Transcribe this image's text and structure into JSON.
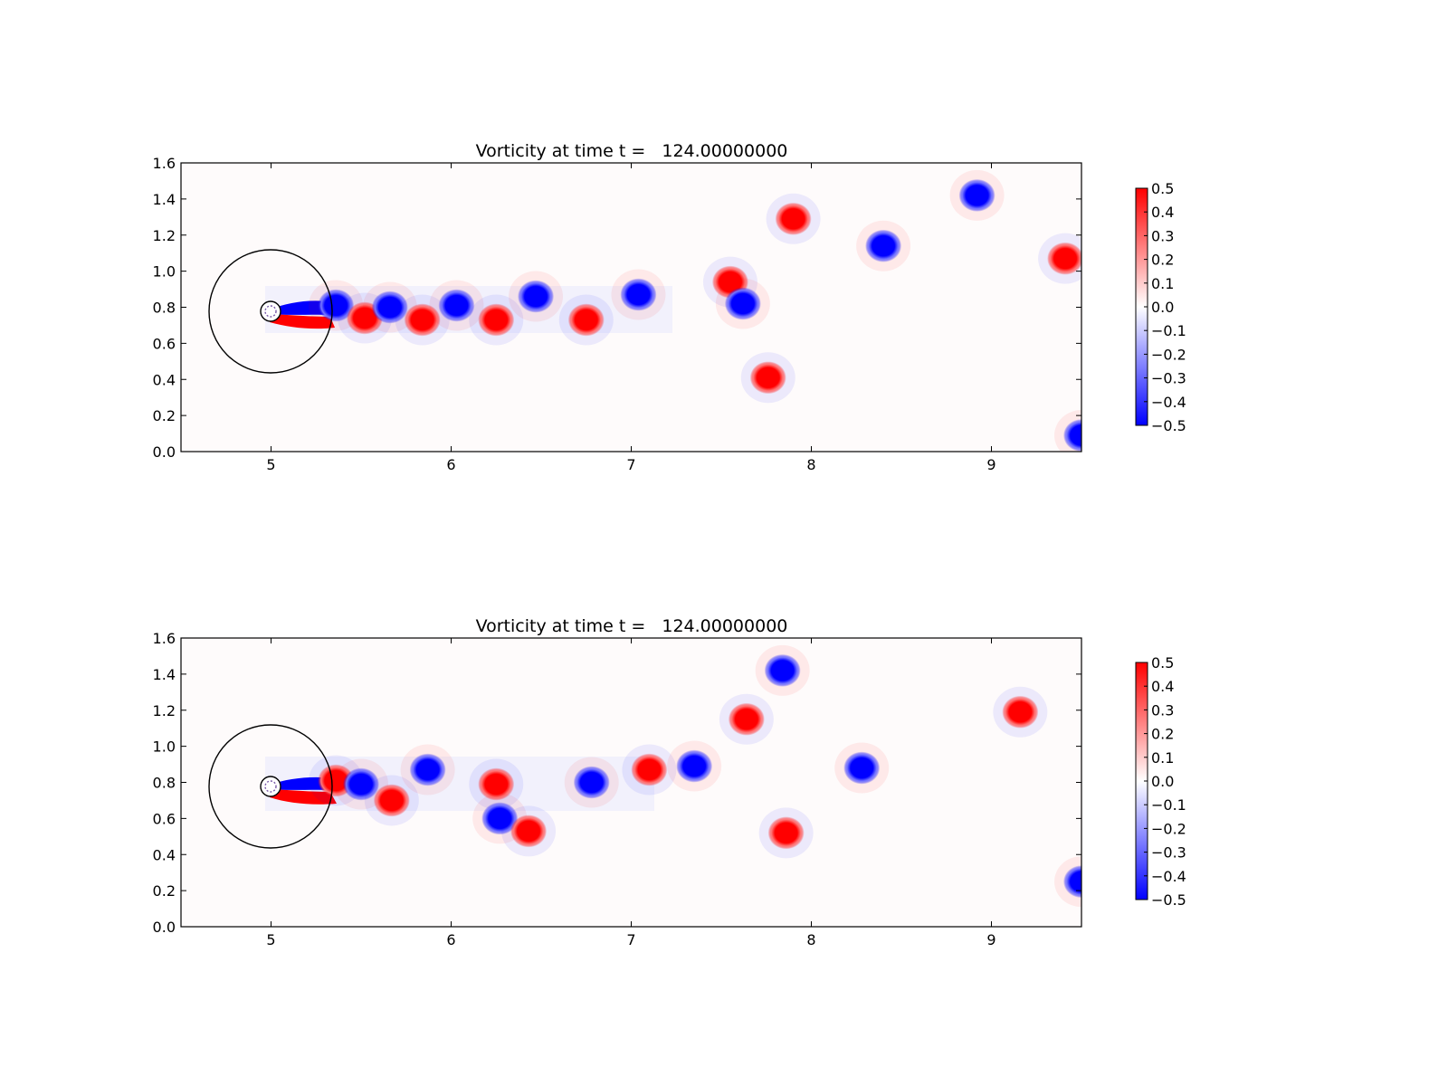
{
  "chart_data": [
    {
      "type": "heatmap",
      "title": "Vorticity at time t =   124.00000000",
      "xlabel": "",
      "ylabel": "",
      "xlim": [
        4.5,
        9.5
      ],
      "ylim": [
        0.0,
        1.6
      ],
      "x_ticks": [
        5,
        6,
        7,
        8,
        9
      ],
      "y_ticks": [
        0.0,
        0.2,
        0.4,
        0.6,
        0.8,
        1.0,
        1.2,
        1.4,
        1.6
      ],
      "grid": false,
      "colormap": {
        "name": "bwr",
        "low": "#0000ff",
        "mid": "#ffffff",
        "high": "#ff0000"
      },
      "colorbar": {
        "min": -0.5,
        "max": 0.5,
        "ticks": [
          0.5,
          0.4,
          0.3,
          0.2,
          0.1,
          0.0,
          -0.1,
          -0.2,
          -0.3,
          -0.4,
          -0.5
        ]
      },
      "circles": [
        {
          "cx": 5.0,
          "cy": 0.76,
          "r": 0.35
        },
        {
          "cx": 5.0,
          "cy": 0.76,
          "r": 0.055
        }
      ],
      "vortices": [
        {
          "x": 5.36,
          "y": 0.81,
          "w": -0.5
        },
        {
          "x": 5.52,
          "y": 0.74,
          "w": 0.5
        },
        {
          "x": 5.66,
          "y": 0.8,
          "w": -0.5
        },
        {
          "x": 5.84,
          "y": 0.73,
          "w": 0.5
        },
        {
          "x": 6.03,
          "y": 0.81,
          "w": -0.5
        },
        {
          "x": 6.25,
          "y": 0.73,
          "w": 0.5
        },
        {
          "x": 6.47,
          "y": 0.86,
          "w": -0.5
        },
        {
          "x": 6.75,
          "y": 0.73,
          "w": 0.5
        },
        {
          "x": 7.04,
          "y": 0.87,
          "w": -0.5
        },
        {
          "x": 7.55,
          "y": 0.94,
          "w": 0.5
        },
        {
          "x": 7.62,
          "y": 0.82,
          "w": -0.5
        },
        {
          "x": 7.76,
          "y": 0.41,
          "w": 0.5
        },
        {
          "x": 7.9,
          "y": 1.29,
          "w": 0.5
        },
        {
          "x": 8.4,
          "y": 1.14,
          "w": -0.5
        },
        {
          "x": 8.92,
          "y": 1.42,
          "w": -0.5
        },
        {
          "x": 9.41,
          "y": 1.07,
          "w": 0.5
        },
        {
          "x": 9.5,
          "y": 0.09,
          "w": -0.4
        }
      ]
    },
    {
      "type": "heatmap",
      "title": "Vorticity at time t =   124.00000000",
      "xlabel": "",
      "ylabel": "",
      "xlim": [
        4.5,
        9.5
      ],
      "ylim": [
        0.0,
        1.6
      ],
      "x_ticks": [
        5,
        6,
        7,
        8,
        9
      ],
      "y_ticks": [
        0.0,
        0.2,
        0.4,
        0.6,
        0.8,
        1.0,
        1.2,
        1.4,
        1.6
      ],
      "grid": false,
      "colormap": {
        "name": "bwr",
        "low": "#0000ff",
        "mid": "#ffffff",
        "high": "#ff0000"
      },
      "colorbar": {
        "min": -0.5,
        "max": 0.5,
        "ticks": [
          0.5,
          0.4,
          0.3,
          0.2,
          0.1,
          0.0,
          -0.1,
          -0.2,
          -0.3,
          -0.4,
          -0.5
        ]
      },
      "circles": [
        {
          "cx": 5.0,
          "cy": 0.76,
          "r": 0.35
        },
        {
          "cx": 5.0,
          "cy": 0.76,
          "r": 0.055
        }
      ],
      "vortices": [
        {
          "x": 5.36,
          "y": 0.81,
          "w": 0.5
        },
        {
          "x": 5.5,
          "y": 0.79,
          "w": -0.5
        },
        {
          "x": 5.67,
          "y": 0.7,
          "w": 0.5
        },
        {
          "x": 5.87,
          "y": 0.87,
          "w": -0.5
        },
        {
          "x": 6.25,
          "y": 0.79,
          "w": 0.5
        },
        {
          "x": 6.27,
          "y": 0.6,
          "w": -0.5
        },
        {
          "x": 6.43,
          "y": 0.53,
          "w": 0.5
        },
        {
          "x": 6.78,
          "y": 0.8,
          "w": -0.5
        },
        {
          "x": 7.1,
          "y": 0.87,
          "w": 0.5
        },
        {
          "x": 7.35,
          "y": 0.89,
          "w": -0.5
        },
        {
          "x": 7.64,
          "y": 1.15,
          "w": 0.5
        },
        {
          "x": 7.84,
          "y": 1.42,
          "w": -0.5
        },
        {
          "x": 7.86,
          "y": 0.52,
          "w": 0.5
        },
        {
          "x": 8.28,
          "y": 0.88,
          "w": -0.5
        },
        {
          "x": 9.16,
          "y": 1.19,
          "w": 0.5
        },
        {
          "x": 9.5,
          "y": 0.25,
          "w": -0.4
        }
      ]
    }
  ]
}
